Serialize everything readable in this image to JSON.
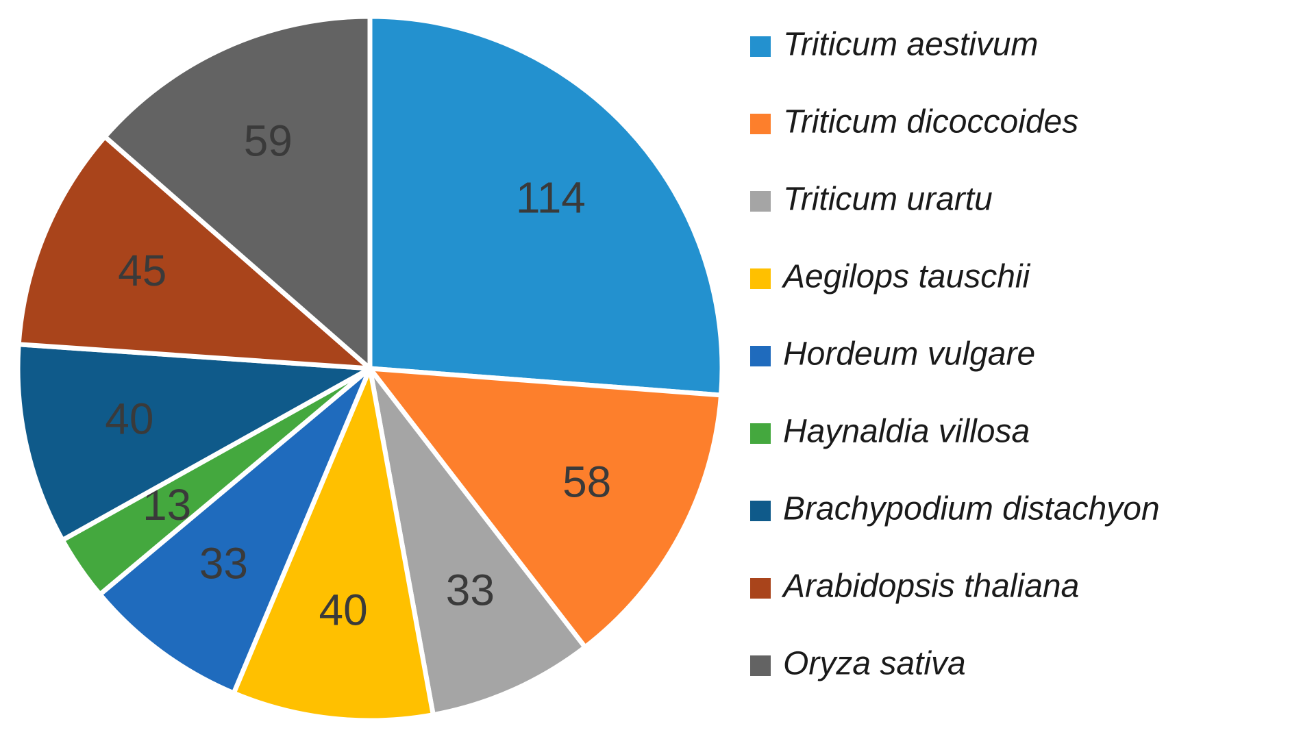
{
  "chart_data": {
    "type": "pie",
    "categories": [
      "Triticum aestivum",
      "Triticum dicoccoides",
      "Triticum urartu",
      "Aegilops tauschii",
      "Hordeum vulgare",
      "Haynaldia villosa",
      "Brachypodium distachyon",
      "Arabidopsis thaliana",
      "Oryza sativa"
    ],
    "values": [
      114,
      58,
      33,
      40,
      33,
      13,
      40,
      45,
      59
    ],
    "colors": [
      "#2391cf",
      "#fd7f2c",
      "#a5a5a5",
      "#ffc000",
      "#1f6bbd",
      "#44a83e",
      "#0f5a8a",
      "#a9441b",
      "#636363"
    ],
    "legend": "right"
  }
}
